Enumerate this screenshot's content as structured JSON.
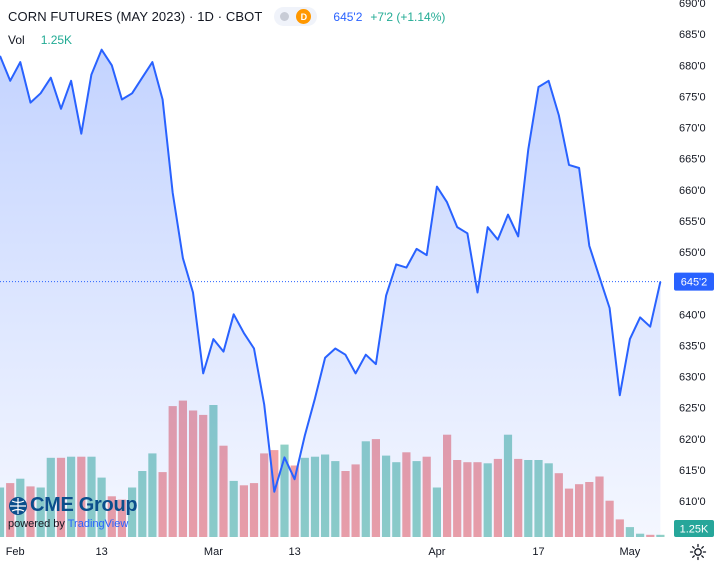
{
  "header": {
    "title": "CORN FUTURES (MAY 2023) · 1D · CBOT",
    "badge": "D",
    "last_price": "645'2",
    "change": "+7'2 (+1.14%)"
  },
  "volume_legend": {
    "label": "Vol",
    "value": "1.25K"
  },
  "logo": {
    "name": "CME Group",
    "powered_by": "powered by",
    "provider": "TradingView"
  },
  "price_tag": "645'2",
  "volume_tag": "1.25K",
  "colors": {
    "line": "#2962ff",
    "up_volume": "#8fd0c6",
    "down_volume": "#f1a0a4",
    "grid_text": "#131722",
    "accent_badge": "#ff9800"
  },
  "chart_data": {
    "type": "area",
    "title": "CORN FUTURES (MAY 2023) · 1D · CBOT",
    "price_axis": {
      "ticks": [
        "610'0",
        "615'0",
        "620'0",
        "625'0",
        "630'0",
        "635'0",
        "640'0",
        "645'0",
        "650'0",
        "655'0",
        "660'0",
        "665'0",
        "670'0",
        "675'0",
        "680'0",
        "685'0",
        "690'0"
      ],
      "range": [
        605,
        690
      ]
    },
    "time_axis": {
      "labels": [
        "Feb",
        "13",
        "Mar",
        "13",
        "Apr",
        "17",
        "May"
      ]
    },
    "series": [
      {
        "kind": "price",
        "values": [
          681.5,
          677.5,
          680.5,
          674,
          675.5,
          678,
          673,
          677.5,
          669,
          678.5,
          682.5,
          680,
          674.5,
          675.5,
          678,
          680.5,
          674.5,
          659.5,
          649,
          643.5,
          630.5,
          636,
          634,
          640,
          637,
          634.5,
          625.5,
          611.5,
          617,
          613.5,
          620.5,
          626.5,
          633,
          634.5,
          633.5,
          630.5,
          633.5,
          632,
          643,
          648,
          647.5,
          650.5,
          649.5,
          660.5,
          658,
          654,
          653,
          643.5,
          654,
          652,
          656,
          652.5,
          666.5,
          676.5,
          677.5,
          672,
          664,
          663.5,
          651,
          646,
          641,
          627,
          636,
          639.5,
          638,
          645.25
        ]
      },
      {
        "kind": "volume",
        "values": [
          4.5,
          4.9,
          5.3,
          4.6,
          4.5,
          7.2,
          7.2,
          7.3,
          7.3,
          7.3,
          5.4,
          3.7,
          3.4,
          4.5,
          6.0,
          7.6,
          5.9,
          11.9,
          12.4,
          11.5,
          11.1,
          12.0,
          8.3,
          5.1,
          4.7,
          4.9,
          7.6,
          7.9,
          8.4,
          6.5,
          7.2,
          7.3,
          7.5,
          6.9,
          6.0,
          6.6,
          8.7,
          8.9,
          7.4,
          6.8,
          7.7,
          6.9,
          7.3,
          4.5,
          9.3,
          7.0,
          6.8,
          6.8,
          6.7,
          7.1,
          9.3,
          7.1,
          7.0,
          7.0,
          6.7,
          5.8,
          4.4,
          4.8,
          5.0,
          5.5,
          3.3,
          1.6,
          0.9,
          0.3,
          0.2,
          0.2
        ]
      }
    ],
    "last_value": 645.25,
    "grid": false
  }
}
